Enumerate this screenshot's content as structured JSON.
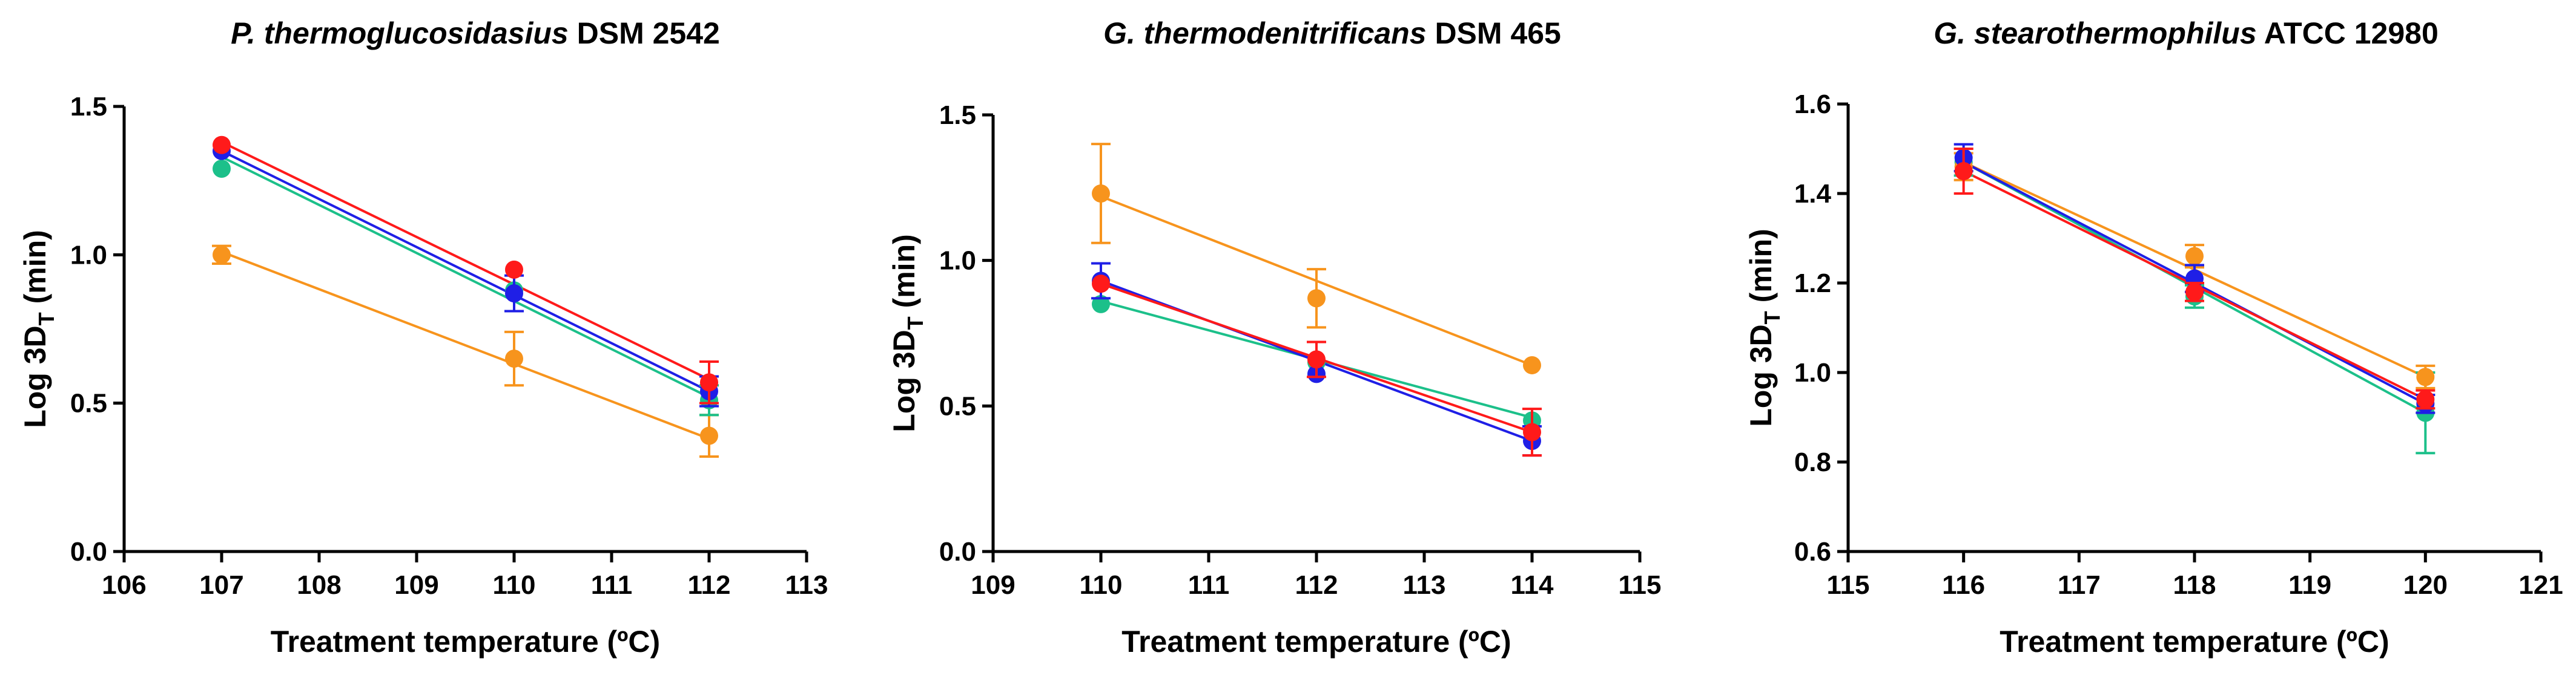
{
  "chart_data": [
    {
      "type": "scatter",
      "title_italic": "P. thermoglucosidasius",
      "title_rest": " DSM 2542",
      "xlabel": "Treatment temperature (ºC)",
      "ylabel_main": "Log 3D",
      "ylabel_sub": "T",
      "ylabel_unit": " (min)",
      "xlim": [
        106,
        113
      ],
      "ylim": [
        0.0,
        1.5
      ],
      "xticks": [
        106,
        107,
        108,
        109,
        110,
        111,
        112,
        113
      ],
      "xtick_labels": [
        "106",
        "107",
        "108",
        "109",
        "110",
        "111",
        "112",
        "113"
      ],
      "yticks": [
        0.0,
        0.5,
        1.0,
        1.5
      ],
      "ytick_labels": [
        "0.0",
        "0.5",
        "1.0",
        "1.5"
      ],
      "series": [
        {
          "name": "orange",
          "color": "#F7941D",
          "x": [
            107,
            110,
            112
          ],
          "y": [
            1.0,
            0.65,
            0.39
          ],
          "err": [
            0.03,
            0.09,
            0.07
          ],
          "fit": [
            [
              107,
              1.01
            ],
            [
              112,
              0.38
            ]
          ]
        },
        {
          "name": "green",
          "color": "#1CC08A",
          "x": [
            107,
            110,
            112
          ],
          "y": [
            1.29,
            0.88,
            0.51
          ],
          "err": [
            0,
            0,
            0.05
          ],
          "fit": [
            [
              107,
              1.33
            ],
            [
              112,
              0.52
            ]
          ]
        },
        {
          "name": "blue",
          "color": "#1F1FE6",
          "x": [
            107,
            110,
            112
          ],
          "y": [
            1.35,
            0.87,
            0.54
          ],
          "err": [
            0,
            0.06,
            0.05
          ],
          "fit": [
            [
              107,
              1.35
            ],
            [
              112,
              0.54
            ]
          ]
        },
        {
          "name": "red",
          "color": "#FF1A1A",
          "x": [
            107,
            110,
            112
          ],
          "y": [
            1.37,
            0.95,
            0.57
          ],
          "err": [
            0,
            0,
            0.07
          ],
          "fit": [
            [
              107,
              1.38
            ],
            [
              112,
              0.58
            ]
          ]
        }
      ]
    },
    {
      "type": "scatter",
      "title_italic": "G. thermodenitrificans",
      "title_rest": " DSM 465",
      "xlabel": "Treatment temperature (ºC)",
      "ylabel_main": "Log 3D",
      "ylabel_sub": "T",
      "ylabel_unit": " (min)",
      "xlim": [
        109,
        115
      ],
      "ylim": [
        0.0,
        1.5
      ],
      "xticks": [
        109,
        110,
        111,
        112,
        113,
        114,
        115
      ],
      "xtick_labels": [
        "109",
        "110",
        "111",
        "112",
        "113",
        "114",
        "115"
      ],
      "yticks": [
        0.0,
        0.5,
        1.0,
        1.5
      ],
      "ytick_labels": [
        "0.0",
        "0.5",
        "1.0",
        "1.5"
      ],
      "series": [
        {
          "name": "orange",
          "color": "#F7941D",
          "x": [
            110,
            112,
            114
          ],
          "y": [
            1.23,
            0.87,
            0.64
          ],
          "err": [
            0.17,
            0.1,
            0
          ],
          "fit": [
            [
              110,
              1.22
            ],
            [
              114,
              0.64
            ]
          ]
        },
        {
          "name": "green",
          "color": "#1CC08A",
          "x": [
            110,
            112,
            114
          ],
          "y": [
            0.85,
            0.65,
            0.45
          ],
          "err": [
            0,
            0,
            0
          ],
          "fit": [
            [
              110,
              0.86
            ],
            [
              114,
              0.46
            ]
          ]
        },
        {
          "name": "blue",
          "color": "#1F1FE6",
          "x": [
            110,
            112,
            114
          ],
          "y": [
            0.93,
            0.61,
            0.38
          ],
          "err": [
            0.06,
            0,
            0.05
          ],
          "fit": [
            [
              110,
              0.93
            ],
            [
              114,
              0.38
            ]
          ]
        },
        {
          "name": "red",
          "color": "#FF1A1A",
          "x": [
            110,
            112,
            114
          ],
          "y": [
            0.92,
            0.66,
            0.41
          ],
          "err": [
            0,
            0.06,
            0.08
          ],
          "fit": [
            [
              110,
              0.92
            ],
            [
              114,
              0.41
            ]
          ]
        }
      ]
    },
    {
      "type": "scatter",
      "title_italic": "G. stearothermophilus",
      "title_rest": " ATCC 12980",
      "xlabel": "Treatment temperature (ºC)",
      "ylabel_main": "Log 3D",
      "ylabel_sub": "T",
      "ylabel_unit": " (min)",
      "xlim": [
        115,
        121
      ],
      "ylim": [
        0.6,
        1.6
      ],
      "xticks": [
        115,
        116,
        117,
        118,
        119,
        120,
        121
      ],
      "xtick_labels": [
        "115",
        "116",
        "117",
        "118",
        "119",
        "120",
        "121"
      ],
      "yticks": [
        0.6,
        0.8,
        1.0,
        1.2,
        1.4,
        1.6
      ],
      "ytick_labels": [
        "0.6",
        "0.8",
        "1.0",
        "1.2",
        "1.4",
        "1.6"
      ],
      "series": [
        {
          "name": "green",
          "color": "#1CC08A",
          "x": [
            116,
            118,
            120
          ],
          "y": [
            1.47,
            1.17,
            0.91
          ],
          "err": [
            0.03,
            0.025,
            0.09
          ],
          "fit": [
            [
              116,
              1.47
            ],
            [
              120,
              0.91
            ]
          ]
        },
        {
          "name": "orange",
          "color": "#F7941D",
          "x": [
            116,
            118,
            120
          ],
          "y": [
            1.46,
            1.26,
            0.99
          ],
          "err": [
            0.03,
            0.025,
            0.025
          ],
          "fit": [
            [
              116,
              1.47
            ],
            [
              120,
              0.99
            ]
          ]
        },
        {
          "name": "blue",
          "color": "#1F1FE6",
          "x": [
            116,
            118,
            120
          ],
          "y": [
            1.48,
            1.21,
            0.93
          ],
          "err": [
            0.03,
            0.03,
            0.02
          ],
          "fit": [
            [
              116,
              1.47
            ],
            [
              120,
              0.93
            ]
          ]
        },
        {
          "name": "red",
          "color": "#FF1A1A",
          "x": [
            116,
            118,
            120
          ],
          "y": [
            1.45,
            1.18,
            0.94
          ],
          "err": [
            0.05,
            0.02,
            0.02
          ],
          "fit": [
            [
              116,
              1.45
            ],
            [
              120,
              0.94
            ]
          ]
        }
      ]
    }
  ]
}
